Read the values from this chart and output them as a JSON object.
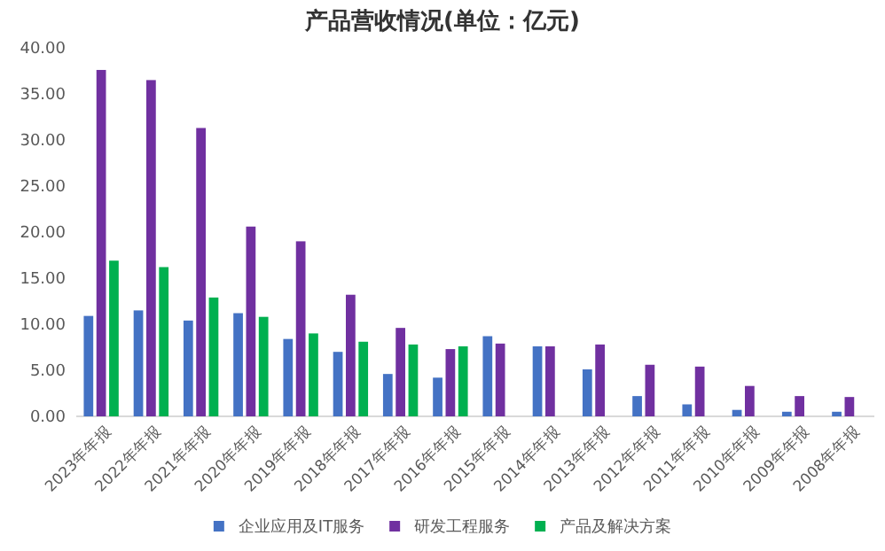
{
  "chart_data": {
    "type": "bar",
    "title": "产品营收情况(单位：亿元)",
    "categories": [
      "2023年年报",
      "2022年年报",
      "2021年年报",
      "2020年年报",
      "2019年年报",
      "2018年年报",
      "2017年年报",
      "2016年年报",
      "2015年年报",
      "2014年年报",
      "2013年年报",
      "2012年年报",
      "2011年年报",
      "2010年年报",
      "2009年年报",
      "2008年年报"
    ],
    "series": [
      {
        "name": "企业应用及IT服务",
        "color": "#4472c4",
        "values": [
          10.9,
          11.5,
          10.4,
          11.2,
          8.4,
          7.0,
          4.6,
          4.2,
          8.7,
          7.6,
          5.1,
          2.2,
          1.3,
          0.7,
          0.5,
          0.5
        ]
      },
      {
        "name": "研发工程服务",
        "color": "#7030a0",
        "values": [
          37.6,
          36.5,
          31.3,
          20.6,
          19.0,
          13.2,
          9.6,
          7.3,
          7.9,
          7.6,
          7.8,
          5.6,
          5.4,
          3.3,
          2.2,
          2.1
        ]
      },
      {
        "name": "产品及解决方案",
        "color": "#00b050",
        "values": [
          16.9,
          16.2,
          12.9,
          10.8,
          9.0,
          8.1,
          7.8,
          7.6,
          null,
          null,
          null,
          null,
          null,
          null,
          null,
          null
        ]
      }
    ],
    "ylim": [
      0,
      40
    ],
    "yticks": [
      {
        "value": 0,
        "label": "0.00"
      },
      {
        "value": 5,
        "label": "5.00"
      },
      {
        "value": 10,
        "label": "10.00"
      },
      {
        "value": 15,
        "label": "15.00"
      },
      {
        "value": 20,
        "label": "20.00"
      },
      {
        "value": 25,
        "label": "25.00"
      },
      {
        "value": 30,
        "label": "30.00"
      },
      {
        "value": 35,
        "label": "35.00"
      },
      {
        "value": 40,
        "label": "40.00"
      }
    ],
    "grid": false,
    "legend": "bottom"
  }
}
